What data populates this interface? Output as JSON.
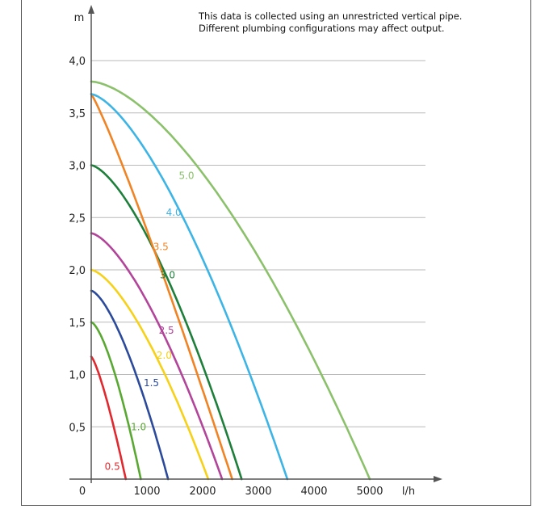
{
  "note": {
    "line1": "This data is collected using an unrestricted vertical pipe.",
    "line2": "Different plumbing configurations may affect output."
  },
  "chart_data": {
    "type": "line",
    "title": "",
    "xlabel": "l/h",
    "ylabel": "m",
    "xlim": [
      0,
      5800
    ],
    "ylim": [
      0,
      4.2
    ],
    "grid": "horizontal",
    "legend": "inline curve labels",
    "x_ticks": [
      "0",
      "1000",
      "2000",
      "3000",
      "4000",
      "5000"
    ],
    "y_ticks": [
      "0,5",
      "1,0",
      "1,5",
      "2,0",
      "2,5",
      "3,0",
      "3,5",
      "4,0"
    ],
    "series": [
      {
        "name": "0.5",
        "color": "#e0282e",
        "exponent": 1.3,
        "points": [
          [
            0,
            1.17
          ],
          [
            620,
            0
          ]
        ],
        "label_point": [
          380,
          0.12
        ]
      },
      {
        "name": "1.0",
        "color": "#59a832",
        "exponent": 1.5,
        "points": [
          [
            0,
            1.5
          ],
          [
            890,
            0
          ]
        ],
        "label_point": [
          850,
          0.5
        ]
      },
      {
        "name": "1.5",
        "color": "#2b4a9c",
        "exponent": 1.5,
        "points": [
          [
            0,
            1.8
          ],
          [
            1380,
            0
          ]
        ],
        "label_point": [
          1080,
          0.92
        ]
      },
      {
        "name": "2.0",
        "color": "#f6d118",
        "exponent": 1.5,
        "points": [
          [
            0,
            2.0
          ],
          [
            2100,
            0
          ]
        ],
        "label_point": [
          1310,
          1.18
        ]
      },
      {
        "name": "2.5",
        "color": "#b2449a",
        "exponent": 1.5,
        "points": [
          [
            0,
            2.35
          ],
          [
            2350,
            0
          ]
        ],
        "label_point": [
          1350,
          1.42
        ]
      },
      {
        "name": "3.0",
        "color": "#1d7f3a",
        "exponent": 1.5,
        "points": [
          [
            0,
            3.0
          ],
          [
            2700,
            0
          ]
        ],
        "label_point": [
          1370,
          1.95
        ]
      },
      {
        "name": "3.5",
        "color": "#f08324",
        "exponent": 1.12,
        "points": [
          [
            0,
            3.68
          ],
          [
            2530,
            0
          ]
        ],
        "label_point": [
          1250,
          2.22
        ]
      },
      {
        "name": "4.0",
        "color": "#3cb4e5",
        "exponent": 1.5,
        "points": [
          [
            0,
            3.68
          ],
          [
            3520,
            0
          ]
        ],
        "label_point": [
          1480,
          2.55
        ]
      },
      {
        "name": "5.0",
        "color": "#8bc16a",
        "exponent": 1.6,
        "points": [
          [
            0,
            3.8
          ],
          [
            5000,
            0
          ]
        ],
        "label_point": [
          1710,
          2.9
        ]
      }
    ]
  }
}
